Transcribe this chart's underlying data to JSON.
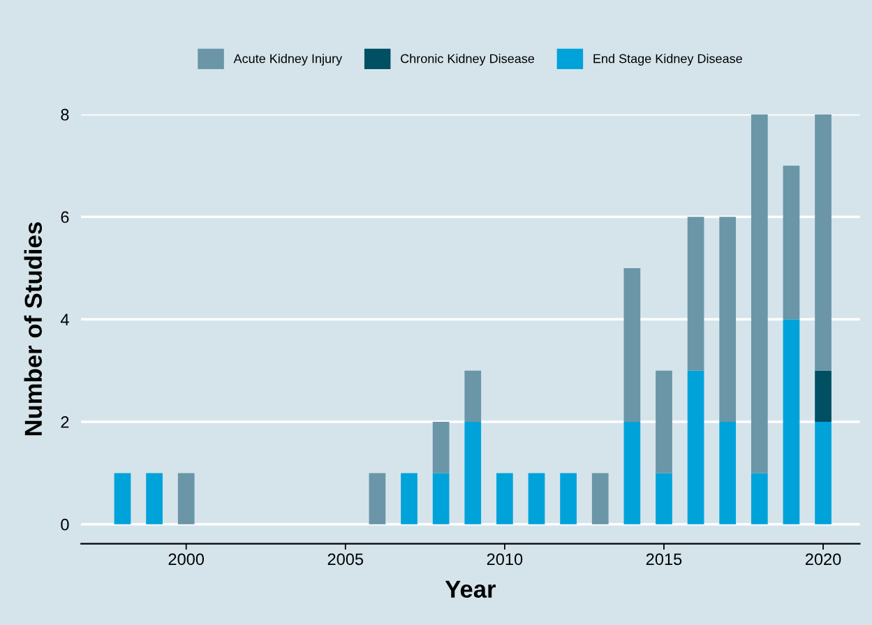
{
  "chart_data": {
    "type": "bar",
    "stacked": true,
    "xlabel": "Year",
    "ylabel": "Number of Studies",
    "x": [
      1998,
      1999,
      2000,
      2006,
      2007,
      2008,
      2009,
      2010,
      2011,
      2012,
      2013,
      2014,
      2015,
      2016,
      2017,
      2018,
      2019,
      2020
    ],
    "series": [
      {
        "name": "End Stage Kidney Disease",
        "color": "#00a3d9",
        "values": [
          1,
          1,
          0,
          0,
          1,
          1,
          2,
          1,
          1,
          1,
          0,
          2,
          1,
          3,
          2,
          1,
          4,
          2
        ]
      },
      {
        "name": "Chronic Kidney Disease",
        "color": "#004f63",
        "values": [
          0,
          0,
          0,
          0,
          0,
          0,
          0,
          0,
          0,
          0,
          0,
          0,
          0,
          0,
          0,
          0,
          0,
          1
        ]
      },
      {
        "name": "Acute Kidney Injury",
        "color": "#6a96a8",
        "values": [
          0,
          0,
          1,
          1,
          0,
          1,
          1,
          0,
          0,
          0,
          1,
          3,
          2,
          3,
          4,
          7,
          3,
          5
        ]
      }
    ],
    "xlim": [
      1996.7,
      2021.15
    ],
    "xticks": [
      2000,
      2005,
      2010,
      2015,
      2020
    ],
    "ylim": [
      -0.38,
      8
    ],
    "yticks": [
      0,
      2,
      4,
      6,
      8
    ],
    "grid": "y",
    "legend": "top"
  }
}
